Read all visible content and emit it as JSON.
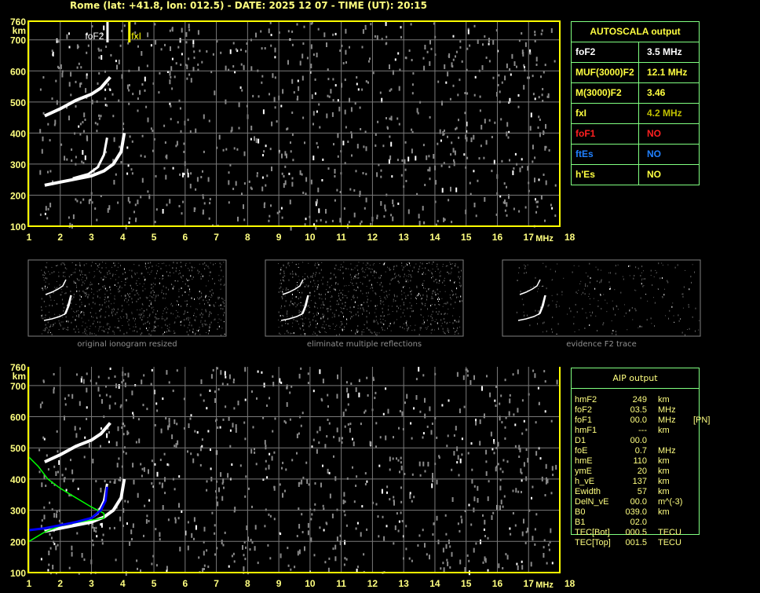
{
  "header": {
    "title": "Rome (lat: +41.8, lon: 012.5) - DATE: 2025 12 07 - TIME (UT): 20:15"
  },
  "axes": {
    "freq_ticks": [
      "1",
      "2",
      "3",
      "4",
      "5",
      "6",
      "7",
      "8",
      "9",
      "10",
      "11",
      "12",
      "13",
      "14",
      "15",
      "16",
      "17",
      "18"
    ],
    "height_ticks": [
      "760",
      "700",
      "600",
      "500",
      "400",
      "300",
      "200",
      "100"
    ],
    "height_unit": "km",
    "freq_unit": "MHz",
    "freq_range": [
      1,
      18
    ],
    "height_range": [
      100,
      760
    ]
  },
  "markers": {
    "foF2_label": "foF2",
    "foF2_mhz": 3.5,
    "fxI_label": "fxI",
    "fxI_mhz": 4.2
  },
  "autoscala": {
    "title": "AUTOSCALA output",
    "rows": [
      {
        "key": "foF2",
        "value": "3.5 MHz",
        "key_color": "#ffffff",
        "value_color": "#ffffff"
      },
      {
        "key": "MUF(3000)F2",
        "value": "12.1 MHz",
        "key_color": "#ffff40",
        "value_color": "#ffff40"
      },
      {
        "key": "M(3000)F2",
        "value": "3.46",
        "key_color": "#ffff40",
        "value_color": "#ffff40"
      },
      {
        "key": "fxI",
        "value": "4.2 MHz",
        "key_color": "#ffff40",
        "value_color": "#c0c000"
      },
      {
        "key": "foF1",
        "value": "NO",
        "key_color": "#ff2020",
        "value_color": "#ff2020"
      },
      {
        "key": "ftEs",
        "value": "NO",
        "key_color": "#2080ff",
        "value_color": "#2080ff"
      },
      {
        "key": "h'Es",
        "value": "NO",
        "key_color": "#ffff40",
        "value_color": "#ffff40"
      }
    ]
  },
  "thumbnails": [
    {
      "caption": "original ionogram resized"
    },
    {
      "caption": "eliminate multiple reflections"
    },
    {
      "caption": "evidence F2 trace"
    }
  ],
  "aip": {
    "title": "AIP output",
    "rows": [
      {
        "name": "hmF2",
        "value": "249",
        "unit": "km",
        "extra": ""
      },
      {
        "name": "foF2",
        "value": "03.5",
        "unit": "MHz",
        "extra": ""
      },
      {
        "name": "foF1",
        "value": "00.0",
        "unit": "MHz",
        "extra": "[PN]"
      },
      {
        "name": "hmF1",
        "value": "---",
        "unit": "km",
        "extra": ""
      },
      {
        "name": "D1",
        "value": "00.0",
        "unit": "",
        "extra": ""
      },
      {
        "name": "foE",
        "value": "0.7",
        "unit": "MHz",
        "extra": ""
      },
      {
        "name": "hmE",
        "value": "110",
        "unit": "km",
        "extra": ""
      },
      {
        "name": "ymE",
        "value": "20",
        "unit": "km",
        "extra": ""
      },
      {
        "name": "h_vE",
        "value": "137",
        "unit": "km",
        "extra": ""
      },
      {
        "name": "Ewidth",
        "value": "57",
        "unit": "km",
        "extra": ""
      },
      {
        "name": "DelN_vE",
        "value": "00.0",
        "unit": "m^(-3)",
        "extra": ""
      },
      {
        "name": "B0",
        "value": "039.0",
        "unit": "km",
        "extra": ""
      },
      {
        "name": "B1",
        "value": "02.0",
        "unit": "",
        "extra": ""
      },
      {
        "name": "TEC[Bot]",
        "value": "000.5",
        "unit": "TECU",
        "extra": ""
      },
      {
        "name": "TEC[Top]",
        "value": "001.5",
        "unit": "TECU",
        "extra": ""
      }
    ]
  },
  "colors": {
    "axis": "#ffff00",
    "grid": "#7a7a7a",
    "table_border": "#80ff80",
    "profile": "#00ff00",
    "trace_fit": "#0000ff"
  }
}
